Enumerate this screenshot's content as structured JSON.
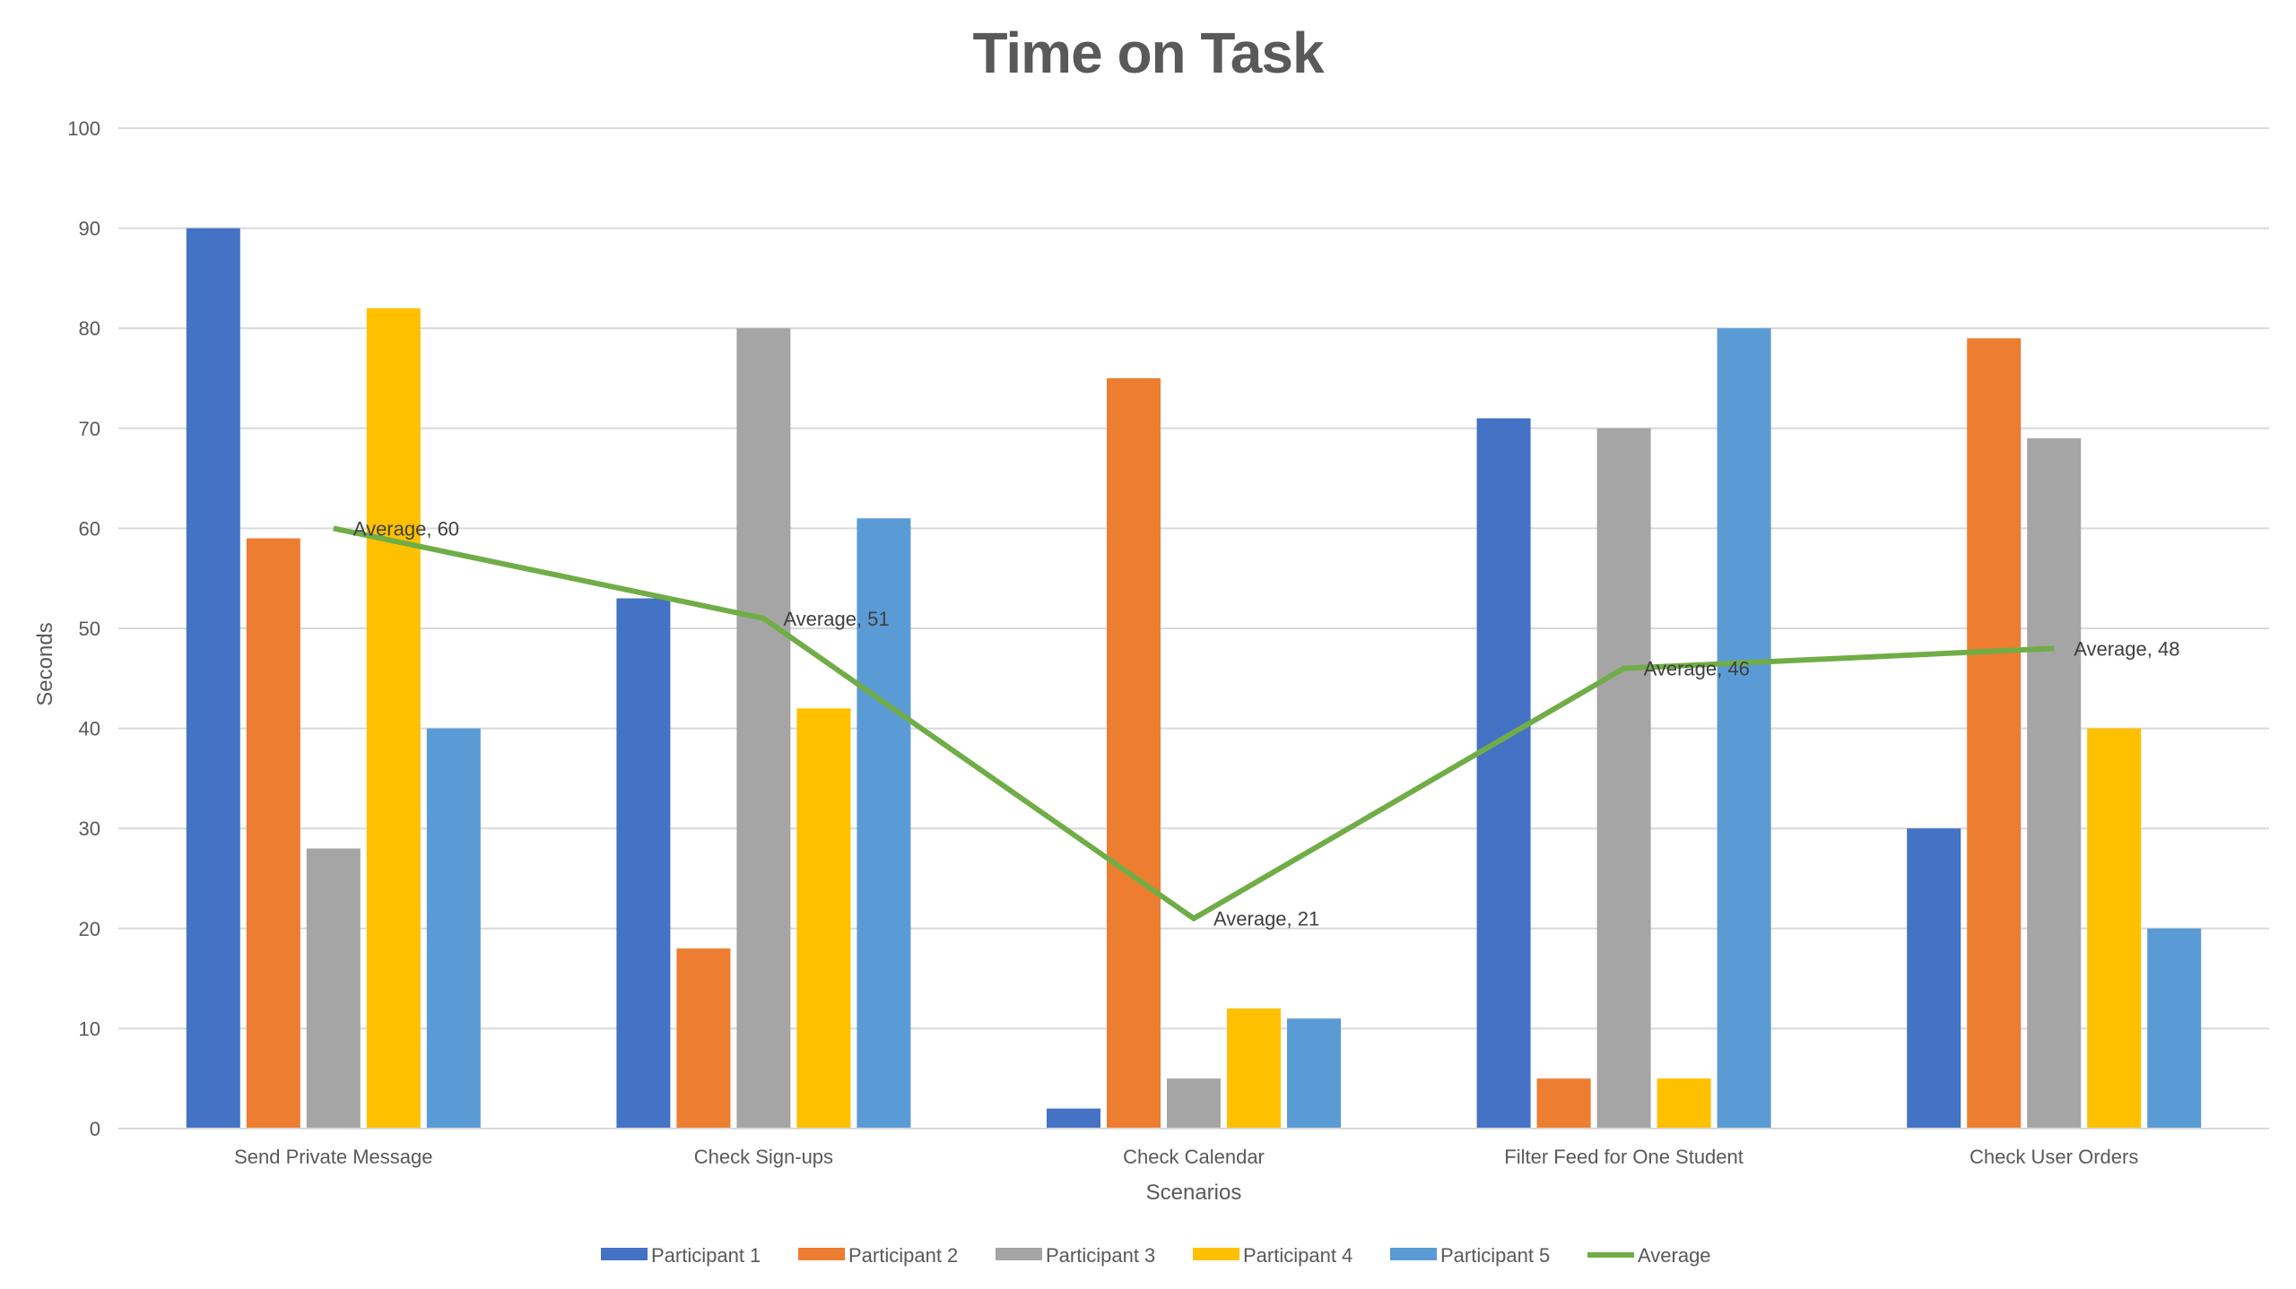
{
  "chart_data": {
    "type": "bar",
    "title": "Time on Task",
    "xlabel": "Scenarios",
    "ylabel": "Seconds",
    "ylim": [
      0,
      100
    ],
    "yticks": [
      0,
      10,
      20,
      30,
      40,
      50,
      60,
      70,
      80,
      90,
      100
    ],
    "grid": true,
    "legend_position": "bottom",
    "categories": [
      "Send Private Message",
      "Check Sign-ups",
      "Check Calendar",
      "Filter Feed for One Student",
      "Check User Orders"
    ],
    "series": [
      {
        "name": "Participant 1",
        "type": "bar",
        "color": "#4472C4",
        "values": [
          90,
          53,
          2,
          71,
          30
        ]
      },
      {
        "name": "Participant 2",
        "type": "bar",
        "color": "#ED7D31",
        "values": [
          59,
          18,
          75,
          5,
          79
        ]
      },
      {
        "name": "Participant 3",
        "type": "bar",
        "color": "#A5A5A5",
        "values": [
          28,
          80,
          5,
          70,
          69
        ]
      },
      {
        "name": "Participant 4",
        "type": "bar",
        "color": "#FFC000",
        "values": [
          82,
          42,
          12,
          5,
          40
        ]
      },
      {
        "name": "Participant 5",
        "type": "bar",
        "color": "#5B9BD5",
        "values": [
          40,
          61,
          11,
          80,
          20
        ]
      },
      {
        "name": "Average",
        "type": "line",
        "color": "#70AD47",
        "values": [
          60,
          51,
          21,
          46,
          48
        ]
      }
    ],
    "annotations": [
      "Average, 60",
      "Average, 51",
      "Average, 21",
      "Average, 46",
      "Average, 48"
    ]
  }
}
